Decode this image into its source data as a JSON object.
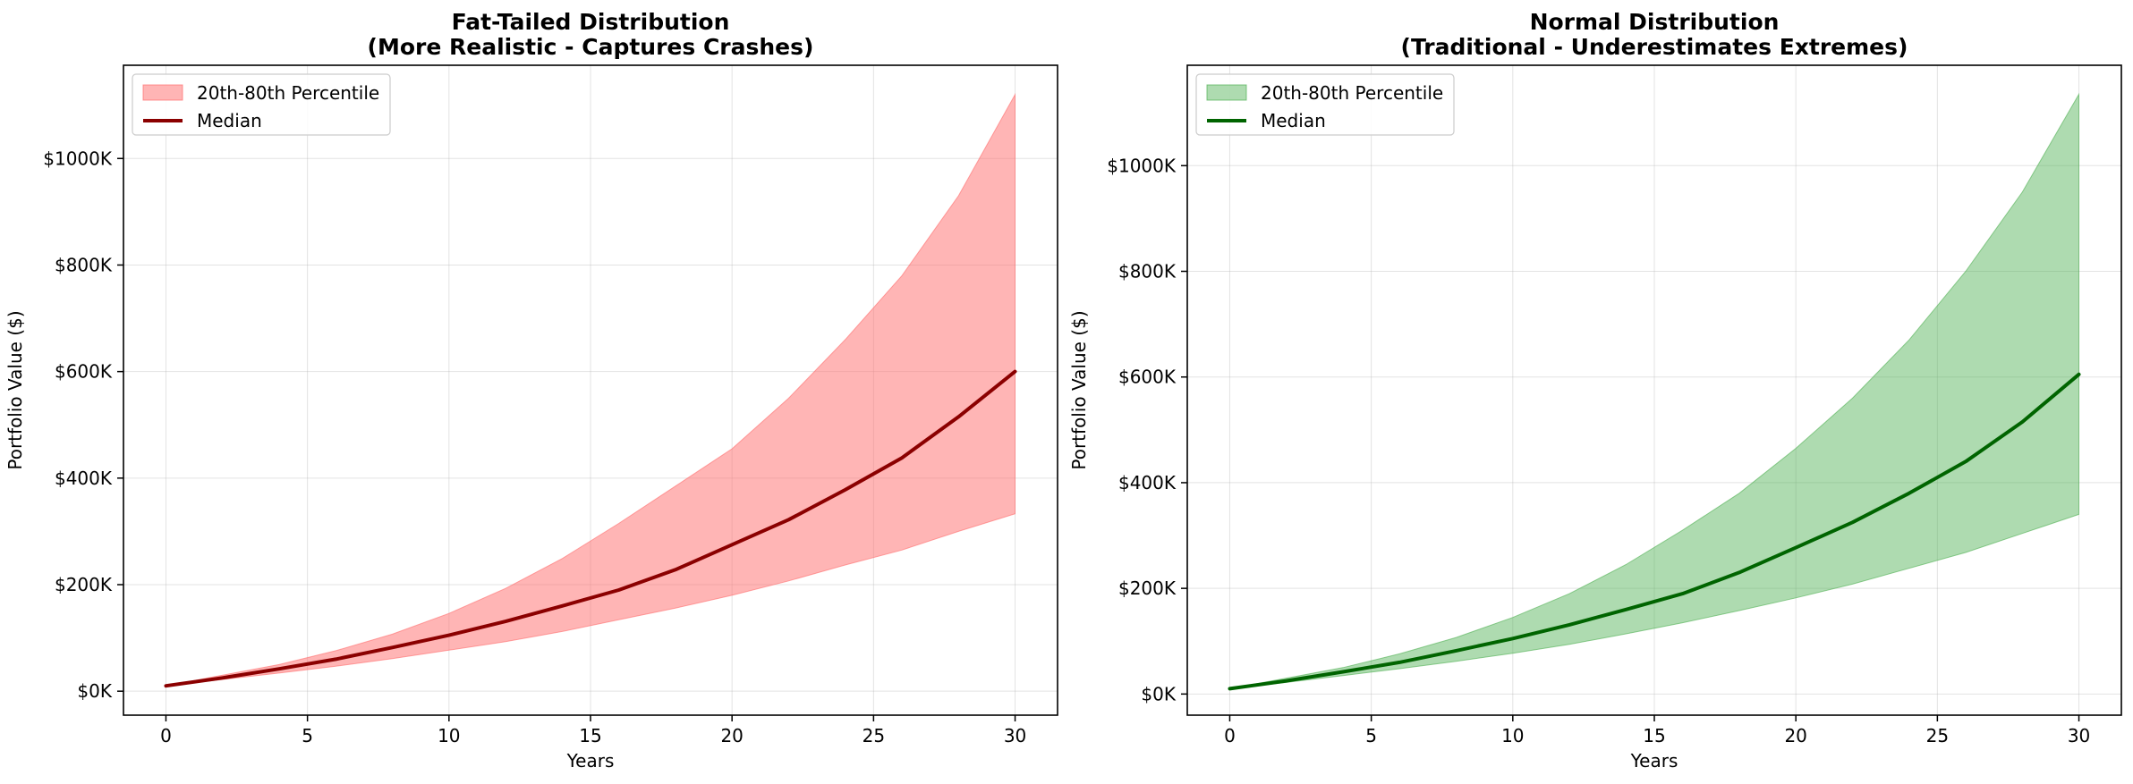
{
  "chart_data": [
    {
      "type": "area",
      "title": "Fat-Tailed Distribution\n(More Realistic - Captures Crashes)",
      "xlabel": "Years",
      "ylabel": "Portfolio Value ($)",
      "xlim": [
        -1.5,
        31.5
      ],
      "ylim": [
        -45000,
        1175000
      ],
      "x_ticks": [
        0,
        5,
        10,
        15,
        20,
        25,
        30
      ],
      "y_ticks": [
        0,
        200000,
        400000,
        600000,
        800000,
        1000000
      ],
      "y_tick_labels": [
        "$0K",
        "$200K",
        "$400K",
        "$600K",
        "$800K",
        "$1000K"
      ],
      "grid": true,
      "legend_position": "top-left",
      "legend": [
        "20th-80th Percentile",
        "Median"
      ],
      "x": [
        0,
        2,
        4,
        6,
        8,
        10,
        12,
        14,
        16,
        18,
        20,
        22,
        24,
        26,
        28,
        30
      ],
      "series": [
        {
          "name": "20th-80th Percentile",
          "kind": "band",
          "color": "#ff6b6b",
          "fill_alpha": 0.5,
          "lower": [
            10000,
            22000,
            34000,
            47000,
            61000,
            77000,
            93000,
            112000,
            134000,
            156000,
            180000,
            207000,
            237000,
            265000,
            300000,
            333000
          ],
          "upper": [
            10000,
            30000,
            50000,
            76000,
            107000,
            146000,
            193000,
            249000,
            315000,
            385000,
            455000,
            550000,
            660000,
            780000,
            930000,
            1120000
          ]
        },
        {
          "name": "Median",
          "kind": "line",
          "color": "#8b0000",
          "values": [
            10000,
            25000,
            42000,
            60000,
            82000,
            105000,
            131000,
            160000,
            190000,
            228000,
            275000,
            322000,
            378000,
            438000,
            515000,
            600000
          ]
        }
      ]
    },
    {
      "type": "area",
      "title": "Normal Distribution\n(Traditional - Underestimates Extremes)",
      "xlabel": "Years",
      "ylabel": "Portfolio Value ($)",
      "xlim": [
        -1.5,
        31.5
      ],
      "ylim": [
        -40000,
        1190000
      ],
      "x_ticks": [
        0,
        5,
        10,
        15,
        20,
        25,
        30
      ],
      "y_ticks": [
        0,
        200000,
        400000,
        600000,
        800000,
        1000000
      ],
      "y_tick_labels": [
        "$0K",
        "$200K",
        "$400K",
        "$600K",
        "$800K",
        "$1000K"
      ],
      "grid": true,
      "legend_position": "top-left",
      "legend": [
        "20th-80th Percentile",
        "Median"
      ],
      "x": [
        0,
        2,
        4,
        6,
        8,
        10,
        12,
        14,
        16,
        18,
        20,
        22,
        24,
        26,
        28,
        30
      ],
      "series": [
        {
          "name": "20th-80th Percentile",
          "kind": "band",
          "color": "#4caf50",
          "fill_alpha": 0.45,
          "lower": [
            10000,
            22000,
            35000,
            48000,
            62000,
            77000,
            94000,
            114000,
            135000,
            158000,
            182000,
            208000,
            238000,
            268000,
            304000,
            340000
          ],
          "upper": [
            10000,
            30000,
            50000,
            76000,
            107000,
            145000,
            190000,
            245000,
            310000,
            380000,
            465000,
            560000,
            670000,
            800000,
            950000,
            1135000
          ]
        },
        {
          "name": "Median",
          "kind": "line",
          "color": "#006400",
          "values": [
            10000,
            25000,
            42000,
            60000,
            82000,
            105000,
            131000,
            160000,
            190000,
            230000,
            277000,
            325000,
            380000,
            440000,
            515000,
            605000
          ]
        }
      ]
    }
  ]
}
